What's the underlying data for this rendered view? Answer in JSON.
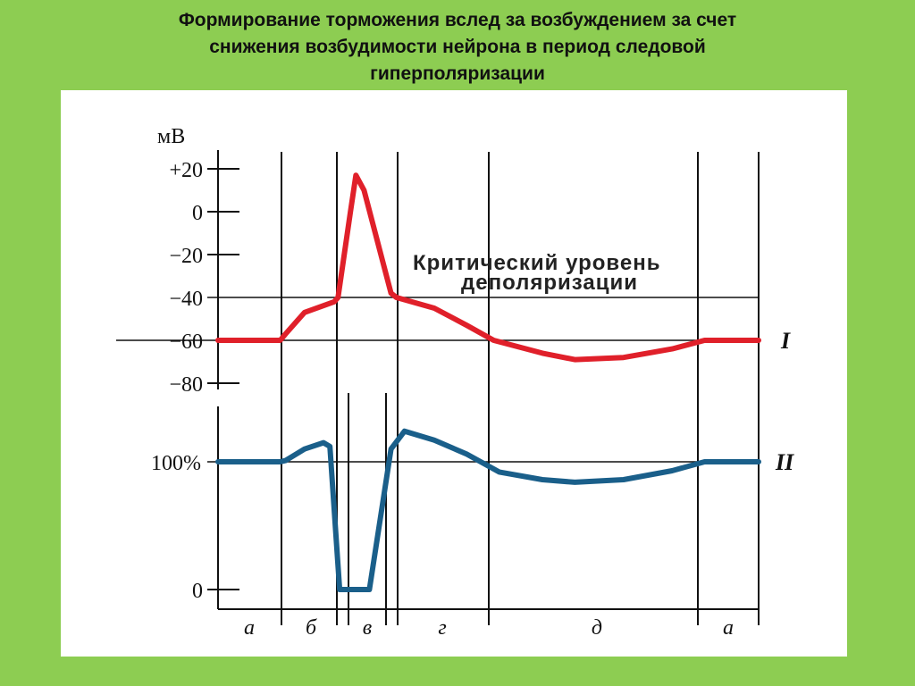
{
  "title": {
    "lines": [
      "Формирование торможения  вслед  за возбуждением  за счет",
      "снижения  возбудимости  нейрона в период  следовой",
      "гиперполяризации"
    ]
  },
  "colors": {
    "background": "#8dcd52",
    "panel": "#ffffff",
    "curve_I": "#e0202a",
    "curve_II": "#1a5f8a",
    "axis": "#111111"
  },
  "chart_data": [
    {
      "type": "line",
      "series_label": "I",
      "ylabel": "мВ",
      "y_ticks": [
        20,
        0,
        -20,
        -40,
        -60,
        -80
      ],
      "y_tick_labels": [
        "+20",
        "0",
        "−20",
        "−40",
        "−60",
        "−80"
      ],
      "ylim": [
        -80,
        20
      ],
      "threshold": {
        "value": -40,
        "label_lines": [
          "Критический уровень",
          "деполяризации"
        ]
      },
      "resting_level": -60,
      "points": [
        {
          "phase": "а",
          "t": 0.0,
          "mV": -60
        },
        {
          "phase": "а",
          "t": 0.115,
          "mV": -60
        },
        {
          "phase": "б",
          "t": 0.125,
          "mV": -57
        },
        {
          "phase": "б",
          "t": 0.16,
          "mV": -47
        },
        {
          "phase": "б",
          "t": 0.215,
          "mV": -42
        },
        {
          "phase": "б",
          "t": 0.222,
          "mV": -40
        },
        {
          "phase": "в",
          "t": 0.245,
          "mV": 0
        },
        {
          "phase": "в",
          "t": 0.255,
          "mV": 17
        },
        {
          "phase": "в",
          "t": 0.27,
          "mV": 10
        },
        {
          "phase": "в",
          "t": 0.32,
          "mV": -38
        },
        {
          "phase": "г",
          "t": 0.33,
          "mV": -40
        },
        {
          "phase": "г",
          "t": 0.4,
          "mV": -45
        },
        {
          "phase": "г",
          "t": 0.46,
          "mV": -53
        },
        {
          "phase": "д",
          "t": 0.51,
          "mV": -60
        },
        {
          "phase": "д",
          "t": 0.6,
          "mV": -66
        },
        {
          "phase": "д",
          "t": 0.66,
          "mV": -69
        },
        {
          "phase": "д",
          "t": 0.75,
          "mV": -68
        },
        {
          "phase": "д",
          "t": 0.84,
          "mV": -64
        },
        {
          "phase": "д",
          "t": 0.9,
          "mV": -60
        },
        {
          "phase": "а",
          "t": 1.0,
          "mV": -60
        }
      ]
    },
    {
      "type": "line",
      "series_label": "II",
      "y_ticks": [
        100,
        0
      ],
      "y_tick_labels": [
        "100%",
        "0"
      ],
      "ylim": [
        0,
        100
      ],
      "baseline": 100,
      "points": [
        {
          "phase": "а",
          "t": 0.0,
          "pct": 100
        },
        {
          "phase": "а",
          "t": 0.115,
          "pct": 100
        },
        {
          "phase": "б",
          "t": 0.125,
          "pct": 101
        },
        {
          "phase": "б",
          "t": 0.16,
          "pct": 110
        },
        {
          "phase": "б",
          "t": 0.195,
          "pct": 115
        },
        {
          "phase": "б",
          "t": 0.207,
          "pct": 112
        },
        {
          "phase": "в",
          "t": 0.225,
          "pct": 0
        },
        {
          "phase": "в",
          "t": 0.28,
          "pct": 0
        },
        {
          "phase": "в",
          "t": 0.32,
          "pct": 110
        },
        {
          "phase": "г",
          "t": 0.345,
          "pct": 124
        },
        {
          "phase": "г",
          "t": 0.4,
          "pct": 117
        },
        {
          "phase": "г",
          "t": 0.46,
          "pct": 106
        },
        {
          "phase": "д",
          "t": 0.52,
          "pct": 92
        },
        {
          "phase": "д",
          "t": 0.6,
          "pct": 86
        },
        {
          "phase": "д",
          "t": 0.66,
          "pct": 84
        },
        {
          "phase": "д",
          "t": 0.75,
          "pct": 86
        },
        {
          "phase": "д",
          "t": 0.84,
          "pct": 93
        },
        {
          "phase": "д",
          "t": 0.9,
          "pct": 100
        },
        {
          "phase": "а",
          "t": 1.0,
          "pct": 100
        }
      ]
    }
  ],
  "phases": [
    "а",
    "б",
    "в",
    "г",
    "д",
    "а"
  ]
}
